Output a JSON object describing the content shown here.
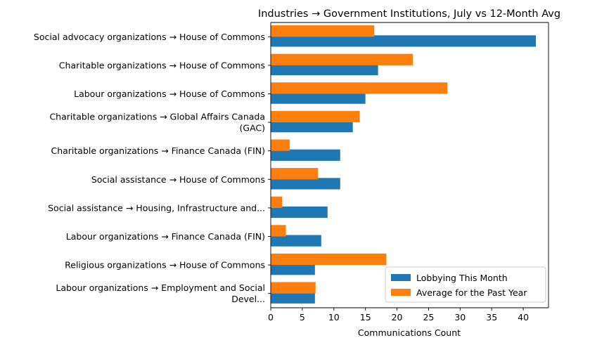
{
  "chart_data": {
    "type": "bar",
    "orientation": "horizontal",
    "title": "Industries → Government Institutions, July vs 12-Month Avg",
    "xlabel": "Communications Count",
    "ylabel": "",
    "xlim": [
      0,
      44
    ],
    "xticks": [
      0,
      5,
      10,
      15,
      20,
      25,
      30,
      35,
      40
    ],
    "legend_position": "bottom-right",
    "categories": [
      [
        "Social advocacy organizations → House of Commons"
      ],
      [
        "Charitable organizations → House of Commons"
      ],
      [
        "Labour organizations → House of Commons"
      ],
      [
        "Charitable organizations → Global Affairs Canada",
        "(GAC)"
      ],
      [
        "Charitable organizations → Finance Canada (FIN)"
      ],
      [
        "Social assistance → House of Commons"
      ],
      [
        "Social assistance → Housing, Infrastructure and..."
      ],
      [
        "Labour organizations → Finance Canada (FIN)"
      ],
      [
        "Religious organizations → House of Commons"
      ],
      [
        "Labour organizations → Employment and Social",
        "Devel..."
      ]
    ],
    "series": [
      {
        "name": "Lobbying This Month",
        "color": "#1f77b4",
        "values": [
          42,
          17,
          15,
          13,
          11,
          11,
          9,
          8,
          7,
          7
        ]
      },
      {
        "name": "Average for the Past Year",
        "color": "#ff7f0e",
        "values": [
          16.4,
          22.5,
          28.0,
          14.1,
          3.0,
          7.5,
          1.8,
          2.4,
          18.3,
          7.1
        ]
      }
    ]
  }
}
